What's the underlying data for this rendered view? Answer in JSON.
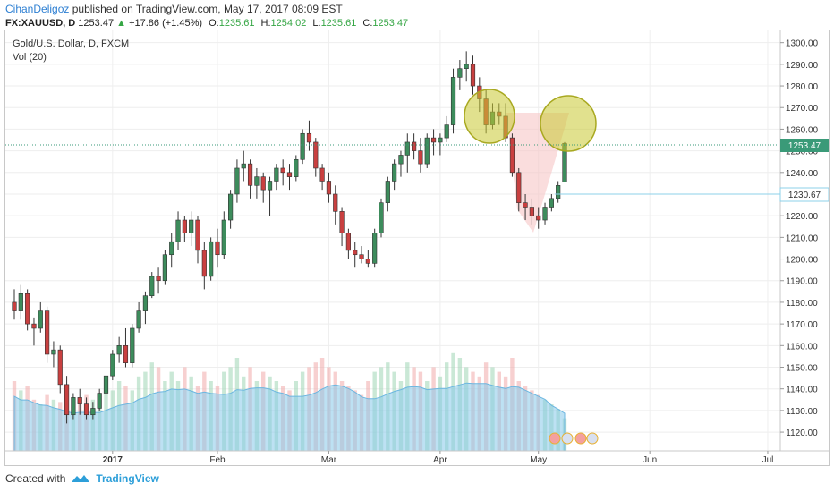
{
  "header": {
    "author": "CihanDeligoz",
    "published_text": "published on TradingView.com, May 17, 2017 08:09 EST",
    "symbol": "FX:XAUUSD, D",
    "last": "1253.47",
    "change": "+17.86 (+1.45%)",
    "o_label": "O:",
    "o": "1235.61",
    "h_label": "H:",
    "h": "1254.02",
    "l_label": "L:",
    "l": "1235.61",
    "c_label": "C:",
    "c": "1253.47"
  },
  "legend": {
    "title": "Gold/U.S. Dollar, D, FXCM",
    "volume": "Vol (20)"
  },
  "price_tags": {
    "last": "1253.47",
    "level": "1230.67"
  },
  "footer": {
    "created_with": "Created with",
    "brand": "TradingView"
  },
  "colors": {
    "up": "#3d8c5c",
    "down": "#c94040",
    "volume": "#87c8ea",
    "highlight": "#c8c832",
    "zone": "#f7c6c6"
  },
  "chart_data": {
    "type": "candlestick",
    "y_ticks": [
      1120,
      1130,
      1140,
      1150,
      1160,
      1170,
      1180,
      1190,
      1200,
      1210,
      1220,
      1230,
      1240,
      1250,
      1260,
      1270,
      1280,
      1290,
      1300
    ],
    "ylim": [
      1113,
      1304
    ],
    "x_labels": [
      "2017",
      "Feb",
      "Mar",
      "Apr",
      "May",
      "Jun",
      "Jul"
    ],
    "candles": [
      [
        1180,
        1186,
        1172,
        1176
      ],
      [
        1176,
        1188,
        1172,
        1184
      ],
      [
        1184,
        1186,
        1167,
        1170
      ],
      [
        1170,
        1173,
        1160,
        1168
      ],
      [
        1168,
        1180,
        1166,
        1176
      ],
      [
        1176,
        1178,
        1152,
        1156
      ],
      [
        1156,
        1162,
        1150,
        1158
      ],
      [
        1158,
        1160,
        1138,
        1142
      ],
      [
        1142,
        1146,
        1124,
        1128
      ],
      [
        1128,
        1138,
        1126,
        1136
      ],
      [
        1136,
        1140,
        1128,
        1133
      ],
      [
        1133,
        1136,
        1126,
        1128
      ],
      [
        1128,
        1134,
        1126,
        1131
      ],
      [
        1131,
        1140,
        1130,
        1138
      ],
      [
        1138,
        1148,
        1136,
        1146
      ],
      [
        1146,
        1158,
        1144,
        1156
      ],
      [
        1156,
        1164,
        1152,
        1160
      ],
      [
        1160,
        1168,
        1150,
        1152
      ],
      [
        1152,
        1170,
        1150,
        1168
      ],
      [
        1168,
        1180,
        1166,
        1176
      ],
      [
        1176,
        1185,
        1170,
        1183
      ],
      [
        1183,
        1194,
        1182,
        1192
      ],
      [
        1192,
        1196,
        1184,
        1190
      ],
      [
        1190,
        1204,
        1188,
        1202
      ],
      [
        1202,
        1212,
        1196,
        1208
      ],
      [
        1208,
        1222,
        1204,
        1218
      ],
      [
        1218,
        1220,
        1208,
        1212
      ],
      [
        1212,
        1222,
        1206,
        1218
      ],
      [
        1218,
        1220,
        1198,
        1204
      ],
      [
        1204,
        1208,
        1186,
        1192
      ],
      [
        1192,
        1210,
        1190,
        1208
      ],
      [
        1208,
        1214,
        1196,
        1202
      ],
      [
        1202,
        1222,
        1200,
        1218
      ],
      [
        1218,
        1232,
        1214,
        1230
      ],
      [
        1230,
        1246,
        1226,
        1242
      ],
      [
        1242,
        1250,
        1236,
        1244
      ],
      [
        1244,
        1246,
        1228,
        1234
      ],
      [
        1234,
        1242,
        1228,
        1238
      ],
      [
        1238,
        1240,
        1226,
        1232
      ],
      [
        1232,
        1238,
        1220,
        1236
      ],
      [
        1236,
        1244,
        1232,
        1242
      ],
      [
        1242,
        1246,
        1234,
        1240
      ],
      [
        1240,
        1244,
        1232,
        1238
      ],
      [
        1238,
        1248,
        1236,
        1246
      ],
      [
        1246,
        1260,
        1244,
        1258
      ],
      [
        1258,
        1264,
        1250,
        1254
      ],
      [
        1254,
        1256,
        1238,
        1242
      ],
      [
        1242,
        1244,
        1232,
        1236
      ],
      [
        1236,
        1240,
        1226,
        1230
      ],
      [
        1230,
        1234,
        1216,
        1222
      ],
      [
        1222,
        1224,
        1206,
        1212
      ],
      [
        1212,
        1214,
        1200,
        1204
      ],
      [
        1204,
        1208,
        1196,
        1202
      ],
      [
        1202,
        1206,
        1198,
        1200
      ],
      [
        1200,
        1204,
        1196,
        1198
      ],
      [
        1198,
        1214,
        1196,
        1212
      ],
      [
        1212,
        1228,
        1210,
        1226
      ],
      [
        1226,
        1238,
        1222,
        1236
      ],
      [
        1236,
        1246,
        1232,
        1244
      ],
      [
        1244,
        1250,
        1238,
        1248
      ],
      [
        1248,
        1258,
        1240,
        1254
      ],
      [
        1254,
        1258,
        1246,
        1250
      ],
      [
        1250,
        1256,
        1240,
        1244
      ],
      [
        1244,
        1258,
        1242,
        1256
      ],
      [
        1256,
        1260,
        1248,
        1254
      ],
      [
        1254,
        1258,
        1248,
        1256
      ],
      [
        1256,
        1266,
        1254,
        1262
      ],
      [
        1262,
        1288,
        1258,
        1284
      ],
      [
        1284,
        1292,
        1278,
        1288
      ],
      [
        1288,
        1296,
        1282,
        1290
      ],
      [
        1290,
        1294,
        1276,
        1280
      ],
      [
        1280,
        1284,
        1268,
        1274
      ],
      [
        1274,
        1278,
        1258,
        1262
      ],
      [
        1262,
        1272,
        1260,
        1268
      ],
      [
        1268,
        1272,
        1262,
        1266
      ],
      [
        1266,
        1272,
        1254,
        1256
      ],
      [
        1256,
        1258,
        1238,
        1240
      ],
      [
        1240,
        1242,
        1222,
        1226
      ],
      [
        1226,
        1230,
        1218,
        1224
      ],
      [
        1224,
        1228,
        1216,
        1220
      ],
      [
        1220,
        1224,
        1214,
        1218
      ],
      [
        1218,
        1226,
        1216,
        1224
      ],
      [
        1224,
        1230,
        1222,
        1228
      ],
      [
        1228,
        1236,
        1226,
        1234
      ],
      [
        1235.61,
        1254.02,
        1235.61,
        1253.47
      ]
    ],
    "volume": [
      30,
      26,
      28,
      22,
      20,
      24,
      22,
      21,
      20,
      18,
      22,
      24,
      22,
      20,
      28,
      26,
      30,
      28,
      26,
      32,
      34,
      38,
      36,
      30,
      34,
      30,
      36,
      32,
      28,
      34,
      30,
      28,
      34,
      36,
      40,
      32,
      36,
      30,
      34,
      32,
      30,
      28,
      26,
      30,
      34,
      36,
      38,
      40,
      36,
      34,
      30,
      28,
      26,
      24,
      30,
      34,
      36,
      38,
      34,
      30,
      38,
      36,
      34,
      30,
      36,
      32,
      38,
      42,
      40,
      36,
      34,
      32,
      38,
      36,
      34,
      32,
      40,
      30,
      28,
      26,
      24,
      22,
      20,
      18,
      14
    ],
    "volume_max": 80
  }
}
